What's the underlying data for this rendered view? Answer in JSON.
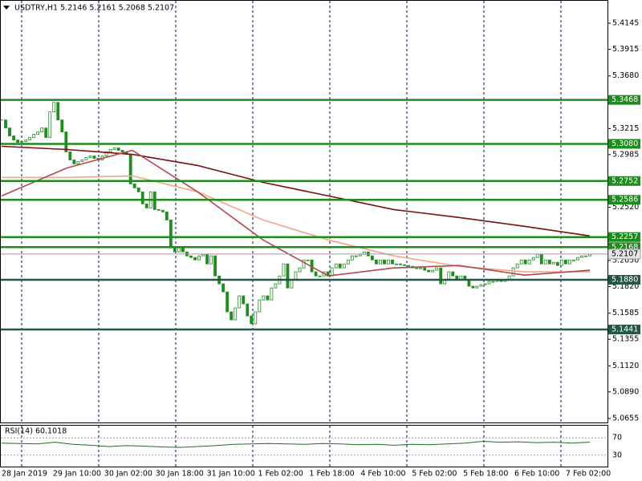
{
  "chart_data": [
    {
      "type": "candlestick",
      "title": "USDTRY,H1  5.2146 5.2161 5.2068 5.2107",
      "xtick_labels": [
        "28 Jan 2019",
        "29 Jan 10:00",
        "30 Jan 02:00",
        "30 Jan 18:00",
        "31 Jan 10:00",
        "1 Feb 02:00",
        "1 Feb 18:00",
        "4 Feb 10:00",
        "5 Feb 02:00",
        "5 Feb 18:00",
        "6 Feb 10:00",
        "7 Feb 02:00"
      ],
      "close": [
        5.3291,
        5.322,
        5.315,
        5.3114,
        5.3093,
        5.31,
        5.3114,
        5.3136,
        5.3164,
        5.3185,
        5.322,
        5.3136,
        5.3362,
        5.3446,
        5.3291,
        5.3185,
        5.3009,
        5.2938,
        5.2903,
        5.2924,
        5.2938,
        5.2959,
        5.2973,
        5.2952,
        5.2938,
        5.2973,
        5.3009,
        5.303,
        5.3044,
        5.3023,
        5.3009,
        5.2987,
        5.2726,
        5.2691,
        5.2656,
        5.255,
        5.2514,
        5.2656,
        5.25,
        5.2493,
        5.2479,
        5.2408,
        5.2161,
        5.2126,
        5.2161,
        5.2126,
        5.2091,
        5.2077,
        5.2055,
        5.2091,
        5.2105,
        5.202,
        5.2091,
        5.1914,
        5.1844,
        5.1773,
        5.1597,
        5.1526,
        5.1632,
        5.1738,
        5.1667,
        5.1561,
        5.1491,
        5.1597,
        5.1702,
        5.1738,
        5.1702,
        5.1808,
        5.1844,
        5.1914,
        5.202,
        5.1808,
        5.1879,
        5.195,
        5.1985,
        5.2055,
        5.2055,
        5.195,
        5.1914,
        5.1914,
        5.195,
        5.1914,
        5.1985,
        5.202,
        5.1985,
        5.202,
        5.2055,
        5.2091,
        5.2091,
        5.2105,
        5.2126,
        5.2091,
        5.2055,
        5.202,
        5.2055,
        5.202,
        5.2055,
        5.202,
        5.202,
        5.2013,
        5.2006,
        5.1999,
        5.1985,
        5.1985,
        5.1985,
        5.1964,
        5.195,
        5.1964,
        5.1985,
        5.1844,
        5.1879,
        5.195,
        5.1914,
        5.1879,
        5.1914,
        5.1879,
        5.1823,
        5.1808,
        5.1823,
        5.1837,
        5.1844,
        5.1865,
        5.1865,
        5.1879,
        5.1865,
        5.1879,
        5.1914,
        5.1985,
        5.202,
        5.2055,
        5.202,
        5.2055,
        5.2077,
        5.2105,
        5.202,
        5.2055,
        5.202,
        5.2034,
        5.2006,
        5.2055,
        5.202,
        5.2055,
        5.2055,
        5.2077,
        5.2091,
        5.2091,
        5.2107
      ],
      "up_color": "#ffffff",
      "down_color": "#1e8c1e",
      "outline_color": "#1e8c1e",
      "ylim": [
        5.0613,
        5.435
      ],
      "yticks": [
        5.4145,
        5.3915,
        {
          "value": 5.368,
          "label": "5.3680"
        },
        5.3215,
        5.2985,
        {
          "value": 5.252,
          "label": "5.2520"
        },
        {
          "value": 5.205,
          "label": "5.2050"
        },
        {
          "value": 5.182,
          "label": "5.1820"
        },
        5.1585,
        5.1355,
        {
          "value": 5.112,
          "label": "5.1120"
        },
        {
          "value": 5.089,
          "label": "5.0890"
        },
        5.0655
      ],
      "levels": {
        "values": [
          5.3468,
          5.308,
          5.2752,
          5.2586,
          5.2257,
          5.2168,
          5.188,
          5.1441
        ],
        "value_labels": [
          "5.3468",
          "5.3080",
          "5.2752",
          "5.2586",
          "5.2257",
          "5.2168",
          "5.1880",
          "5.1441"
        ],
        "colors": [
          "#1e8c1e",
          "#1e8c1e",
          "#1e8c1e",
          "#1e8c1e",
          "#1e8c1e",
          "#1e8c1e",
          "#24574a",
          "#24574a"
        ]
      },
      "lines": [
        {
          "color": "#7a0f0f",
          "values": [
            5.3058,
            5.303,
            5.2987,
            5.2889,
            5.274,
            5.262,
            5.25,
            5.243,
            5.2352,
            5.2267
          ]
        },
        {
          "color": "#f4a582",
          "values": [
            5.2783,
            5.2783,
            5.2797,
            5.2656,
            5.2408,
            5.2232,
            5.2091,
            5.1999,
            5.195,
            5.195
          ]
        },
        {
          "color": "#b5474f",
          "values": [
            5.262,
            5.2867,
            5.3023,
            5.2656,
            5.2232,
            5.1914,
            5.1985,
            5.2006,
            5.1921,
            5.1964
          ]
        }
      ]
    },
    {
      "type": "line",
      "title": "RSI(14) 60.1018",
      "values": [
        58,
        57,
        56,
        60,
        55,
        53,
        50,
        52,
        51,
        49,
        48,
        50,
        52,
        55,
        56,
        57,
        56,
        55,
        57,
        56,
        54,
        55,
        53,
        55,
        54,
        56,
        58,
        62,
        60,
        61,
        59,
        60,
        58,
        60.1018
      ],
      "color": "#1e6e1e",
      "ylim": [
        0,
        100
      ],
      "yticks": [
        30,
        70
      ]
    }
  ]
}
